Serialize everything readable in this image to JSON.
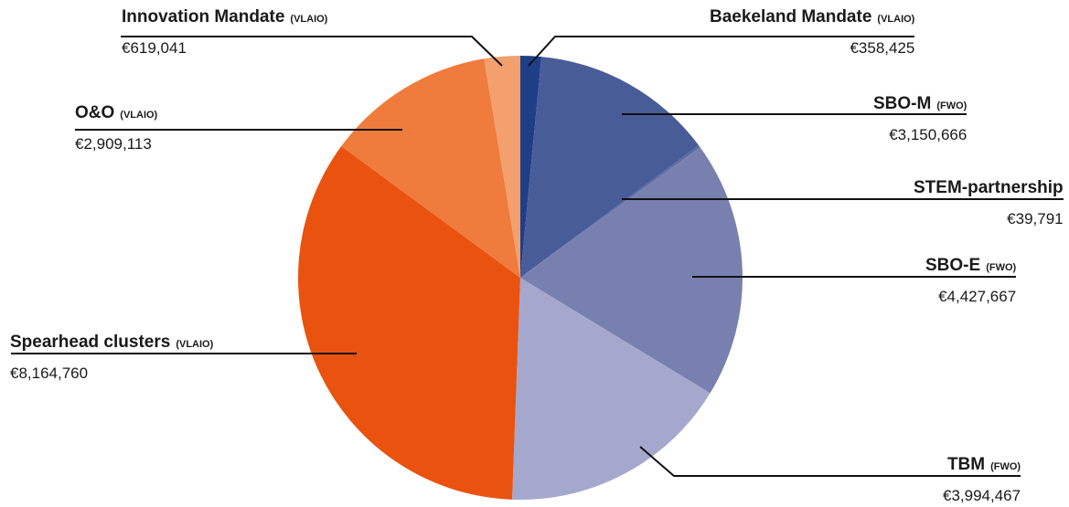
{
  "chart_data": {
    "type": "pie",
    "title": "",
    "start_angle_deg": 0,
    "direction": "clockwise",
    "slices": [
      {
        "name": "Baekeland Mandate",
        "org": "(VLAIO)",
        "value": 358425,
        "value_label": "€358,425",
        "color": "#1e3f86"
      },
      {
        "name": "SBO-M",
        "org": "(FWO)",
        "value": 3150666,
        "value_label": "€3,150,666",
        "color": "#485c98"
      },
      {
        "name": "STEM-partnership",
        "org": "",
        "value": 39791,
        "value_label": "€39,791",
        "color": "#5a6aa2"
      },
      {
        "name": "SBO-E",
        "org": "(FWO)",
        "value": 4427667,
        "value_label": "€4,427,667",
        "color": "#7880b0"
      },
      {
        "name": "TBM",
        "org": "(FWO)",
        "value": 3994467,
        "value_label": "€3,994,467",
        "color": "#a5a8cd"
      },
      {
        "name": "Spearhead clusters",
        "org": "(VLAIO)",
        "value": 8164760,
        "value_label": "€8,164,760",
        "color": "#e9530f"
      },
      {
        "name": "O&O",
        "org": "(VLAIO)",
        "value": 2909113,
        "value_label": "€2,909,113",
        "color": "#ef7c3c"
      },
      {
        "name": "Innovation Mandate",
        "org": "(VLAIO)",
        "value": 619041,
        "value_label": "€619,041",
        "color": "#f3a06e"
      }
    ]
  }
}
